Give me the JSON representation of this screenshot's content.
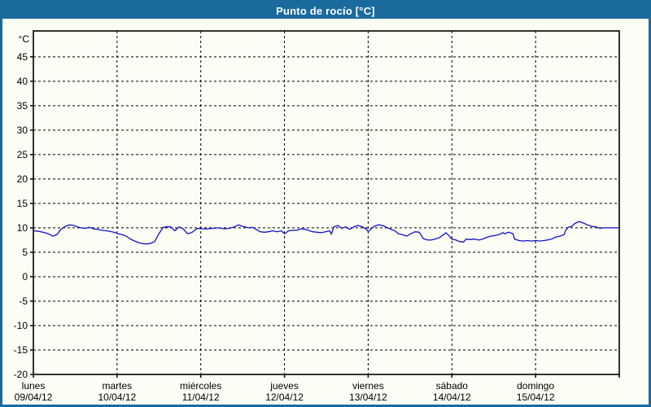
{
  "window": {
    "title": "Punto de rocío [°C]"
  },
  "colors": {
    "titlebar_bg": "#1b6a9e",
    "window_border": "#1b6a9e",
    "title_text": "#ffffff",
    "background": "#fcfdf5",
    "grid": "#000000",
    "axis_text": "#000000",
    "line": "#1212c4"
  },
  "chart_data": {
    "type": "line",
    "title": "Punto de rocío [°C]",
    "ylabel": "°C",
    "xlabel": "",
    "ylim": [
      -20,
      50.3
    ],
    "y_ticks": [
      45,
      40,
      35,
      30,
      25,
      20,
      15,
      10,
      5,
      0,
      -5,
      -10,
      -15,
      -20
    ],
    "x_unit": "days, 0 = lunes 09/04/12 00:00",
    "xlim": [
      0,
      7
    ],
    "grid": "dashed",
    "legend": "none",
    "x_days": [
      {
        "name": "lunes",
        "date": "09/04/12"
      },
      {
        "name": "martes",
        "date": "10/04/12"
      },
      {
        "name": "miércoles",
        "date": "11/04/12"
      },
      {
        "name": "jueves",
        "date": "12/04/12"
      },
      {
        "name": "viernes",
        "date": "13/04/12"
      },
      {
        "name": "sábado",
        "date": "14/04/12"
      },
      {
        "name": "domingo",
        "date": "15/04/12"
      }
    ],
    "series": [
      {
        "name": "Punto de rocío",
        "color": "#1212c4",
        "points": [
          [
            0.01,
            9.4
          ],
          [
            0.09,
            9.2
          ],
          [
            0.14,
            9.0
          ],
          [
            0.19,
            8.7
          ],
          [
            0.23,
            8.3
          ],
          [
            0.28,
            8.6
          ],
          [
            0.33,
            9.7
          ],
          [
            0.38,
            10.3
          ],
          [
            0.43,
            10.6
          ],
          [
            0.48,
            10.5
          ],
          [
            0.53,
            10.2
          ],
          [
            0.57,
            10.0
          ],
          [
            0.62,
            9.9
          ],
          [
            0.67,
            10.1
          ],
          [
            0.72,
            9.8
          ],
          [
            0.77,
            9.7
          ],
          [
            0.82,
            9.5
          ],
          [
            0.87,
            9.4
          ],
          [
            0.91,
            9.3
          ],
          [
            0.96,
            9.1
          ],
          [
            1.01,
            8.8
          ],
          [
            1.06,
            8.6
          ],
          [
            1.11,
            8.3
          ],
          [
            1.16,
            7.7
          ],
          [
            1.21,
            7.3
          ],
          [
            1.25,
            7.0
          ],
          [
            1.3,
            6.8
          ],
          [
            1.35,
            6.7
          ],
          [
            1.4,
            6.8
          ],
          [
            1.45,
            7.2
          ],
          [
            1.5,
            8.8
          ],
          [
            1.55,
            10.1
          ],
          [
            1.59,
            10.2
          ],
          [
            1.64,
            10.2
          ],
          [
            1.69,
            9.4
          ],
          [
            1.74,
            10.2
          ],
          [
            1.79,
            9.8
          ],
          [
            1.84,
            8.8
          ],
          [
            1.89,
            9.0
          ],
          [
            1.92,
            9.4
          ],
          [
            1.96,
            9.9
          ],
          [
            2.01,
            9.8
          ],
          [
            2.08,
            9.8
          ],
          [
            2.15,
            9.9
          ],
          [
            2.21,
            10.0
          ],
          [
            2.28,
            9.8
          ],
          [
            2.34,
            9.9
          ],
          [
            2.4,
            10.2
          ],
          [
            2.45,
            10.6
          ],
          [
            2.5,
            10.3
          ],
          [
            2.57,
            10.0
          ],
          [
            2.62,
            10.1
          ],
          [
            2.66,
            9.7
          ],
          [
            2.71,
            9.2
          ],
          [
            2.76,
            9.1
          ],
          [
            2.81,
            9.2
          ],
          [
            2.86,
            9.4
          ],
          [
            2.91,
            9.2
          ],
          [
            2.96,
            9.4
          ],
          [
            3.0,
            8.8
          ],
          [
            3.05,
            9.4
          ],
          [
            3.1,
            9.5
          ],
          [
            3.15,
            9.5
          ],
          [
            3.2,
            9.8
          ],
          [
            3.25,
            9.7
          ],
          [
            3.3,
            9.4
          ],
          [
            3.34,
            9.2
          ],
          [
            3.39,
            9.1
          ],
          [
            3.44,
            9.0
          ],
          [
            3.49,
            9.2
          ],
          [
            3.54,
            9.4
          ],
          [
            3.56,
            8.7
          ],
          [
            3.59,
            10.2
          ],
          [
            3.64,
            10.5
          ],
          [
            3.68,
            9.9
          ],
          [
            3.73,
            10.2
          ],
          [
            3.78,
            9.7
          ],
          [
            3.83,
            10.2
          ],
          [
            3.88,
            10.5
          ],
          [
            3.93,
            10.2
          ],
          [
            3.98,
            9.7
          ],
          [
            4.0,
            9.2
          ],
          [
            4.03,
            9.7
          ],
          [
            4.07,
            10.3
          ],
          [
            4.12,
            10.6
          ],
          [
            4.17,
            10.5
          ],
          [
            4.22,
            10.1
          ],
          [
            4.27,
            9.7
          ],
          [
            4.32,
            9.4
          ],
          [
            4.36,
            8.8
          ],
          [
            4.41,
            8.6
          ],
          [
            4.46,
            8.3
          ],
          [
            4.51,
            8.8
          ],
          [
            4.56,
            9.2
          ],
          [
            4.61,
            9.1
          ],
          [
            4.64,
            8.3
          ],
          [
            4.66,
            7.8
          ],
          [
            4.71,
            7.5
          ],
          [
            4.75,
            7.5
          ],
          [
            4.8,
            7.7
          ],
          [
            4.85,
            8.0
          ],
          [
            4.9,
            8.6
          ],
          [
            4.93,
            9.0
          ],
          [
            4.97,
            8.3
          ],
          [
            5.0,
            7.7
          ],
          [
            5.05,
            7.5
          ],
          [
            5.09,
            7.2
          ],
          [
            5.14,
            7.1
          ],
          [
            5.17,
            7.7
          ],
          [
            5.22,
            7.6
          ],
          [
            5.27,
            7.7
          ],
          [
            5.32,
            7.5
          ],
          [
            5.37,
            7.7
          ],
          [
            5.41,
            8.0
          ],
          [
            5.46,
            8.3
          ],
          [
            5.51,
            8.4
          ],
          [
            5.56,
            8.6
          ],
          [
            5.61,
            9.0
          ],
          [
            5.63,
            8.8
          ],
          [
            5.68,
            9.1
          ],
          [
            5.73,
            8.8
          ],
          [
            5.75,
            7.7
          ],
          [
            5.8,
            7.4
          ],
          [
            5.85,
            7.3
          ],
          [
            5.9,
            7.4
          ],
          [
            5.95,
            7.3
          ],
          [
            6.0,
            7.4
          ],
          [
            6.05,
            7.3
          ],
          [
            6.1,
            7.4
          ],
          [
            6.14,
            7.5
          ],
          [
            6.19,
            7.7
          ],
          [
            6.24,
            8.1
          ],
          [
            6.29,
            8.3
          ],
          [
            6.34,
            8.6
          ],
          [
            6.36,
            9.5
          ],
          [
            6.39,
            10.1
          ],
          [
            6.43,
            10.3
          ],
          [
            6.47,
            10.9
          ],
          [
            6.52,
            11.3
          ],
          [
            6.57,
            11.0
          ],
          [
            6.62,
            10.6
          ],
          [
            6.67,
            10.3
          ],
          [
            6.72,
            10.2
          ],
          [
            6.77,
            9.9
          ],
          [
            6.81,
            10.0
          ],
          [
            6.86,
            10.0
          ],
          [
            6.91,
            10.0
          ],
          [
            6.96,
            10.0
          ],
          [
            6.99,
            10.0
          ]
        ]
      }
    ]
  }
}
